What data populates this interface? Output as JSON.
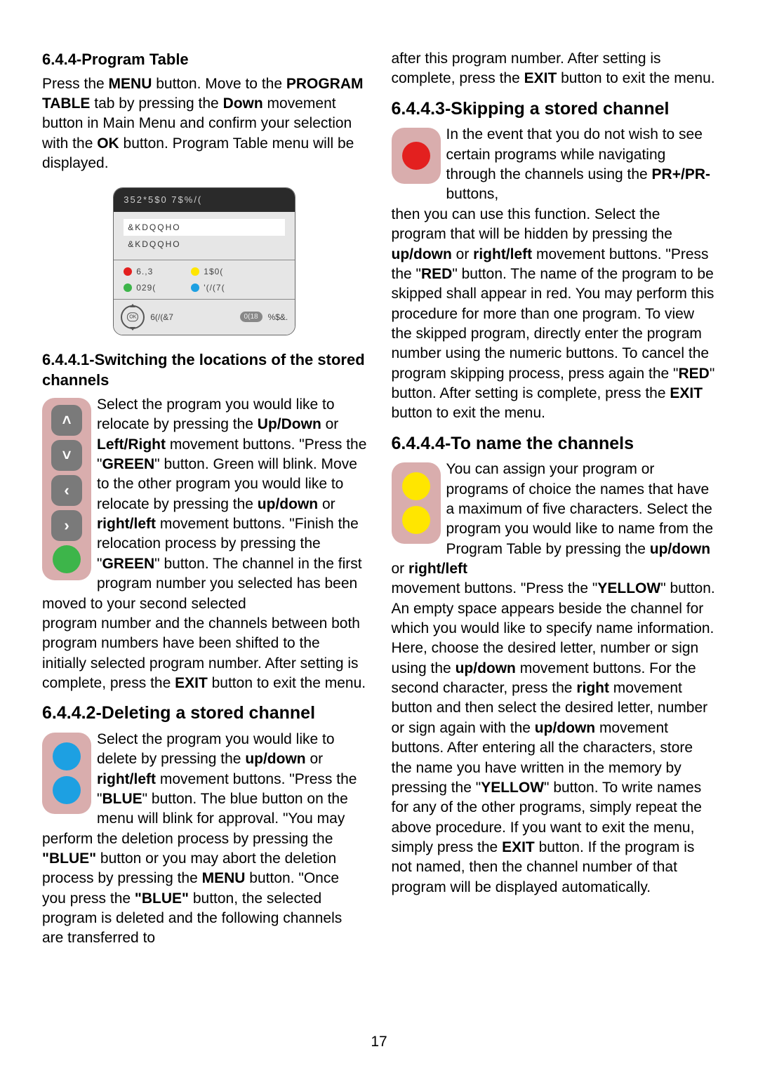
{
  "page_number": "17",
  "colors": {
    "red": "#e3201f",
    "green": "#3db54a",
    "blue": "#1da0e2",
    "yellow": "#ffe600",
    "gray": "#7a7a7a",
    "iconbg": "#d9adad",
    "tableTitleBg": "#2a2a2a",
    "tableBodyBg": "#e6e6e6"
  },
  "left": {
    "s644_title": "6.4.4-Program Table",
    "s644_p1a": "Press the ",
    "s644_p1b": "MENU",
    "s644_p1c": " button. Move to the ",
    "s644_p1d": "PROGRAM TABLE",
    "s644_p1e": " tab by pressing the ",
    "s644_p1f": "Down",
    "s644_p1g": " movement button in Main Menu and confirm your selection with the ",
    "s644_p1h": "OK",
    "s644_p1i": " button. Program Table menu will be displayed.",
    "ptable": {
      "title": "352*5$0 7$%/(",
      "row1": "&KDQQHO",
      "row2": "&KDQQHO",
      "d1": "6.,3",
      "d2": "1$0(",
      "d3": "029(",
      "d4": "'(/(7(",
      "foot1": "6(/(&7",
      "foot_pill": "0(18",
      "foot2": "%$&."
    },
    "s6441_title": "6.4.4.1-Switching the locations of the stored channels",
    "s6441_a": "Select the program you would like to relocate by pressing the ",
    "s6441_b": "Up/Down",
    "s6441_c": " or ",
    "s6441_d": "Left/Right",
    "s6441_e": " movement buttons. \"Press the \"",
    "s6441_f": "GREEN",
    "s6441_g": "\" button. Green will blink. Move to the other program you would like to relocate by pressing the ",
    "s6441_h": "up/down",
    "s6441_i": " or ",
    "s6441_j": "right/left",
    "s6441_k": " movement buttons. \"Finish the relocation process by pressing the \"",
    "s6441_l": "GREEN",
    "s6441_m": "\" button. The channel in the first program number you selected has been moved to your second selected ",
    "s6441_post_a": "program number and the channels between both program numbers have been shifted to the initially selected program number. After setting is complete, press the ",
    "s6441_post_b": "EXIT",
    "s6441_post_c": " button to exit the menu.",
    "s6442_title": "6.4.4.2-Deleting a stored channel",
    "s6442_a": "Select the program you would like to delete by pressing the ",
    "s6442_b": "up/down",
    "s6442_c": " or ",
    "s6442_d": "right/left",
    "s6442_e": " movement buttons. \"Press the \"",
    "s6442_f": "BLUE",
    "s6442_g": "\" button. The blue button on the menu will blink for approval. \"You may ",
    "s6442_post_a": "perform the deletion process by pressing the ",
    "s6442_post_b": "\"BLUE\"",
    "s6442_post_c": " button or you may abort the deletion process by pressing the ",
    "s6442_post_d": "MENU",
    "s6442_post_e": " button. \"Once you press  the ",
    "s6442_post_f": "\"BLUE\"",
    "s6442_post_g": " button, the selected program is deleted and the following channels are transferred to "
  },
  "right": {
    "cont_a": "after this program number. After setting is complete, press the ",
    "cont_b": "EXIT",
    "cont_c": " button to exit the menu.",
    "s6443_title": "6.4.4.3-Skipping a stored channel",
    "s6443_a": "In the event that you do not wish to see certain programs while navigating through the channels using the ",
    "s6443_b": "PR+/PR-",
    "s6443_c": " buttons, ",
    "s6443_post_a": "then you can use this function. Select the program that will be hidden by pressing the ",
    "s6443_post_b": "up/down",
    "s6443_post_c": " or ",
    "s6443_post_d": "right/left",
    "s6443_post_e": " movement buttons. \"Press the \"",
    "s6443_post_f": "RED",
    "s6443_post_g": "\" button. The name of the program to be skipped shall appear in red. You may perform this procedure for more than one program. To view the skipped program, directly enter the program number using the numeric buttons. To cancel the program skipping process, press again the \"",
    "s6443_post_h": "RED",
    "s6443_post_i": "\" button. After setting is complete, press the ",
    "s6443_post_j": "EXIT",
    "s6443_post_k": " button to exit the menu.",
    "s6444_title": "6.4.4.4-To name the channels",
    "s6444_a": "You can assign your program or programs of choice the names that have a maximum of five characters. Select the program you would like to name from the Program Table by pressing the ",
    "s6444_b": "up/down",
    "s6444_c": " or ",
    "s6444_d": "right/left",
    "s6444_post_a": " movement buttons. \"Press the \"",
    "s6444_post_b": "YELLOW",
    "s6444_post_c": "\" button. An empty space appears beside the channel for which you would like to specify name information. Here, choose the desired letter, number or sign using the ",
    "s6444_post_d": "up/down",
    "s6444_post_e": " movement buttons. For the second character, press the ",
    "s6444_post_f": "right",
    "s6444_post_g": " movement button and then select the desired letter, number or sign again with the ",
    "s6444_post_h": "up/down",
    "s6444_post_i": " movement buttons. After entering all the characters, store the name you have written in the memory by pressing the \"",
    "s6444_post_j": "YELLOW",
    "s6444_post_k": "\" button. To write names for any of the other programs, simply repeat the above procedure. If you want to exit the menu, simply press the ",
    "s6444_post_l": "EXIT",
    "s6444_post_m": " button. If the program is not named, then the channel number of that program will be displayed automatically."
  }
}
